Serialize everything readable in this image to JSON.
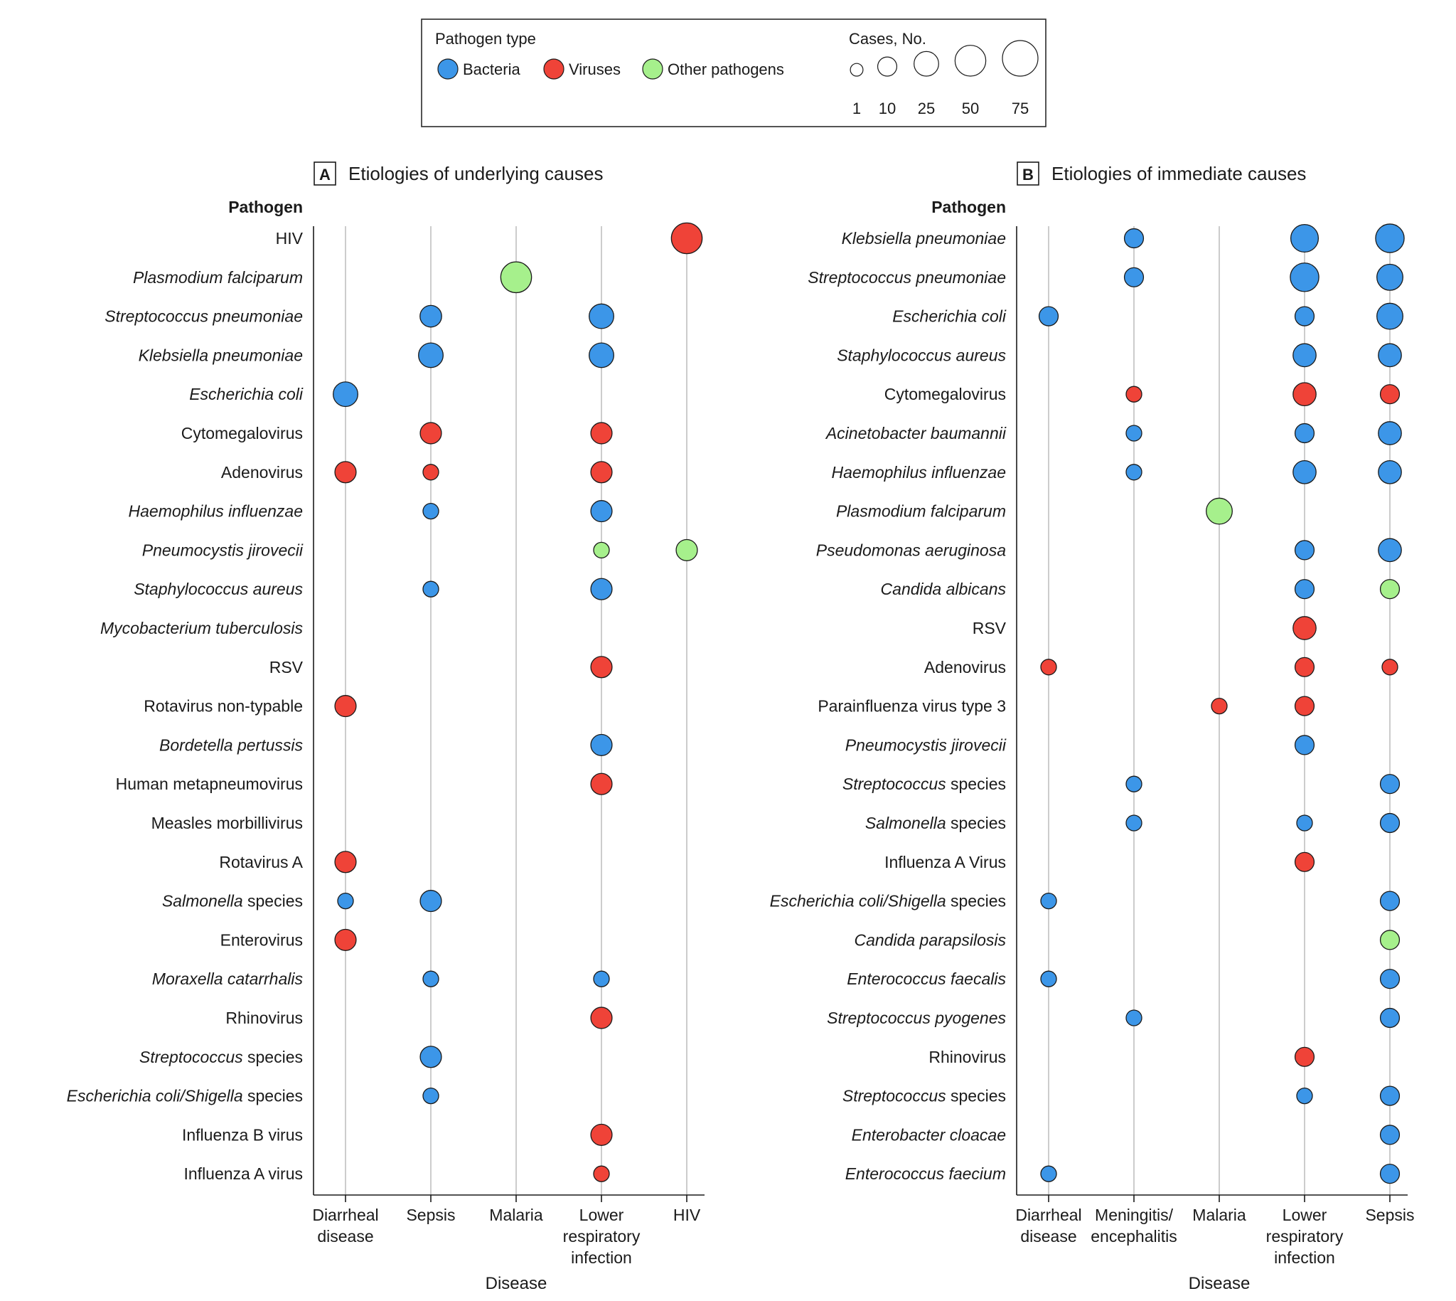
{
  "legend": {
    "type_title": "Pathogen type",
    "types": [
      {
        "key": "bacteria",
        "label": "Bacteria",
        "color": "#3c96e8"
      },
      {
        "key": "viruses",
        "label": "Viruses",
        "color": "#ef4338"
      },
      {
        "key": "other",
        "label": "Other pathogens",
        "color": "#a6f08c"
      }
    ],
    "size_title": "Cases, No.",
    "sizes": [
      {
        "label": "1",
        "value": 1
      },
      {
        "label": "10",
        "value": 10
      },
      {
        "label": "25",
        "value": 25
      },
      {
        "label": "50",
        "value": 50
      },
      {
        "label": "75",
        "value": 75
      }
    ]
  },
  "chart_data": [
    {
      "type": "scatter",
      "panel_letter": "A",
      "title": "Etiologies of underlying causes",
      "ylabel": "Pathogen",
      "xlabel": "Disease",
      "value_note": "bubble values are case counts estimated from bubble size against the legend",
      "categories": [
        "Diarrheal\ndisease",
        "Sepsis",
        "Malaria",
        "Lower\nrespiratory\ninfection",
        "HIV"
      ],
      "pathogens": [
        {
          "name": "HIV",
          "italic": false
        },
        {
          "name": "Plasmodium falciparum",
          "italic": true
        },
        {
          "name": "Streptococcus pneumoniae",
          "italic": true
        },
        {
          "name": "Klebsiella pneumoniae",
          "italic": true
        },
        {
          "name": "Escherichia coli",
          "italic": true
        },
        {
          "name": "Cytomegalovirus",
          "italic": false
        },
        {
          "name": "Adenovirus",
          "italic": false
        },
        {
          "name": "Haemophilus influenzae",
          "italic": true
        },
        {
          "name": "Pneumocystis jirovecii",
          "italic": true
        },
        {
          "name": "Staphylococcus aureus",
          "italic": true
        },
        {
          "name": "Mycobacterium tuberculosis",
          "italic": true
        },
        {
          "name": "RSV",
          "italic": false
        },
        {
          "name": "Rotavirus non-typable",
          "italic": false
        },
        {
          "name": "Bordetella pertussis",
          "italic": true
        },
        {
          "name": "Human metapneumovirus",
          "italic": false
        },
        {
          "name": "Measles morbillivirus",
          "italic": false
        },
        {
          "name": "Rotavirus A",
          "italic": false
        },
        {
          "name": "Salmonella species",
          "italic": true,
          "plain_suffix": " species"
        },
        {
          "name": "Enterovirus",
          "italic": false
        },
        {
          "name": "Moraxella catarrhalis",
          "italic": true
        },
        {
          "name": "Rhinovirus",
          "italic": false
        },
        {
          "name": "Streptococcus species",
          "italic": true,
          "plain_suffix": " species"
        },
        {
          "name": "Escherichia coli/Shigella  species",
          "italic": true,
          "plain_suffix": "  species"
        },
        {
          "name": "Influenza B virus",
          "italic": false
        },
        {
          "name": "Influenza A virus",
          "italic": false
        }
      ],
      "points": [
        {
          "row": 0,
          "col": 4,
          "type": "viruses",
          "cases": 50
        },
        {
          "row": 1,
          "col": 2,
          "type": "other",
          "cases": 50
        },
        {
          "row": 2,
          "col": 1,
          "type": "bacteria",
          "cases": 16
        },
        {
          "row": 2,
          "col": 3,
          "type": "bacteria",
          "cases": 25
        },
        {
          "row": 3,
          "col": 1,
          "type": "bacteria",
          "cases": 25
        },
        {
          "row": 3,
          "col": 3,
          "type": "bacteria",
          "cases": 25
        },
        {
          "row": 4,
          "col": 0,
          "type": "bacteria",
          "cases": 25
        },
        {
          "row": 5,
          "col": 1,
          "type": "viruses",
          "cases": 15
        },
        {
          "row": 5,
          "col": 3,
          "type": "viruses",
          "cases": 15
        },
        {
          "row": 6,
          "col": 0,
          "type": "viruses",
          "cases": 15
        },
        {
          "row": 6,
          "col": 1,
          "type": "viruses",
          "cases": 4
        },
        {
          "row": 6,
          "col": 3,
          "type": "viruses",
          "cases": 15
        },
        {
          "row": 7,
          "col": 1,
          "type": "bacteria",
          "cases": 4
        },
        {
          "row": 7,
          "col": 3,
          "type": "bacteria",
          "cases": 15
        },
        {
          "row": 8,
          "col": 3,
          "type": "other",
          "cases": 4
        },
        {
          "row": 8,
          "col": 4,
          "type": "other",
          "cases": 15
        },
        {
          "row": 9,
          "col": 1,
          "type": "bacteria",
          "cases": 4
        },
        {
          "row": 9,
          "col": 3,
          "type": "bacteria",
          "cases": 15
        },
        {
          "row": 11,
          "col": 3,
          "type": "viruses",
          "cases": 15
        },
        {
          "row": 12,
          "col": 0,
          "type": "viruses",
          "cases": 15
        },
        {
          "row": 13,
          "col": 3,
          "type": "bacteria",
          "cases": 15
        },
        {
          "row": 14,
          "col": 3,
          "type": "viruses",
          "cases": 15
        },
        {
          "row": 16,
          "col": 0,
          "type": "viruses",
          "cases": 15
        },
        {
          "row": 17,
          "col": 0,
          "type": "bacteria",
          "cases": 4
        },
        {
          "row": 17,
          "col": 1,
          "type": "bacteria",
          "cases": 15
        },
        {
          "row": 18,
          "col": 0,
          "type": "viruses",
          "cases": 15
        },
        {
          "row": 19,
          "col": 1,
          "type": "bacteria",
          "cases": 4
        },
        {
          "row": 19,
          "col": 3,
          "type": "bacteria",
          "cases": 4
        },
        {
          "row": 20,
          "col": 3,
          "type": "viruses",
          "cases": 15
        },
        {
          "row": 21,
          "col": 1,
          "type": "bacteria",
          "cases": 15
        },
        {
          "row": 22,
          "col": 1,
          "type": "bacteria",
          "cases": 4
        },
        {
          "row": 23,
          "col": 3,
          "type": "viruses",
          "cases": 15
        },
        {
          "row": 24,
          "col": 3,
          "type": "viruses",
          "cases": 4
        }
      ]
    },
    {
      "type": "scatter",
      "panel_letter": "B",
      "title": "Etiologies of immediate causes",
      "ylabel": "Pathogen",
      "xlabel": "Disease",
      "value_note": "bubble values are case counts estimated from bubble size against the legend",
      "categories": [
        "Diarrheal\ndisease",
        "Meningitis/\nencephalitis",
        "Malaria",
        "Lower\nrespiratory\ninfection",
        "Sepsis"
      ],
      "pathogens": [
        {
          "name": "Klebsiella pneumoniae",
          "italic": true
        },
        {
          "name": "Streptococcus pneumoniae",
          "italic": true
        },
        {
          "name": "Escherichia coli",
          "italic": true
        },
        {
          "name": "Staphylococcus aureus",
          "italic": true
        },
        {
          "name": "Cytomegalovirus",
          "italic": false
        },
        {
          "name": "Acinetobacter baumannii",
          "italic": true
        },
        {
          "name": "Haemophilus influenzae",
          "italic": true
        },
        {
          "name": "Plasmodium falciparum",
          "italic": true
        },
        {
          "name": "Pseudomonas aeruginosa",
          "italic": true
        },
        {
          "name": "Candida albicans",
          "italic": true
        },
        {
          "name": "RSV",
          "italic": false
        },
        {
          "name": "Adenovirus",
          "italic": false
        },
        {
          "name": "Parainfluenza virus type 3",
          "italic": false
        },
        {
          "name": "Pneumocystis jirovecii",
          "italic": true
        },
        {
          "name": "Streptococcus species",
          "italic": true,
          "plain_suffix": " species"
        },
        {
          "name": "Salmonella species",
          "italic": true,
          "plain_suffix": " species"
        },
        {
          "name": "Influenza A Virus",
          "italic": false
        },
        {
          "name": "Escherichia coli/Shigella species",
          "italic": true,
          "plain_suffix": " species"
        },
        {
          "name": "Candida parapsilosis",
          "italic": true
        },
        {
          "name": "Enterococcus faecalis",
          "italic": true
        },
        {
          "name": "Streptococcus pyogenes",
          "italic": true
        },
        {
          "name": "Rhinovirus",
          "italic": false
        },
        {
          "name": "Streptococcus species",
          "italic": true,
          "plain_suffix": " species"
        },
        {
          "name": "Enterobacter cloacae",
          "italic": true
        },
        {
          "name": "Enterococcus faecium",
          "italic": true
        }
      ],
      "points": [
        {
          "row": 0,
          "col": 1,
          "type": "bacteria",
          "cases": 10
        },
        {
          "row": 0,
          "col": 3,
          "type": "bacteria",
          "cases": 36
        },
        {
          "row": 0,
          "col": 4,
          "type": "bacteria",
          "cases": 40
        },
        {
          "row": 1,
          "col": 1,
          "type": "bacteria",
          "cases": 10
        },
        {
          "row": 1,
          "col": 3,
          "type": "bacteria",
          "cases": 40
        },
        {
          "row": 1,
          "col": 4,
          "type": "bacteria",
          "cases": 30
        },
        {
          "row": 2,
          "col": 0,
          "type": "bacteria",
          "cases": 10
        },
        {
          "row": 2,
          "col": 3,
          "type": "bacteria",
          "cases": 10
        },
        {
          "row": 2,
          "col": 4,
          "type": "bacteria",
          "cases": 30
        },
        {
          "row": 3,
          "col": 3,
          "type": "bacteria",
          "cases": 20
        },
        {
          "row": 3,
          "col": 4,
          "type": "bacteria",
          "cases": 20
        },
        {
          "row": 4,
          "col": 1,
          "type": "viruses",
          "cases": 4
        },
        {
          "row": 4,
          "col": 3,
          "type": "viruses",
          "cases": 20
        },
        {
          "row": 4,
          "col": 4,
          "type": "viruses",
          "cases": 10
        },
        {
          "row": 5,
          "col": 1,
          "type": "bacteria",
          "cases": 4
        },
        {
          "row": 5,
          "col": 3,
          "type": "bacteria",
          "cases": 10
        },
        {
          "row": 5,
          "col": 4,
          "type": "bacteria",
          "cases": 20
        },
        {
          "row": 6,
          "col": 1,
          "type": "bacteria",
          "cases": 4
        },
        {
          "row": 6,
          "col": 3,
          "type": "bacteria",
          "cases": 20
        },
        {
          "row": 6,
          "col": 4,
          "type": "bacteria",
          "cases": 20
        },
        {
          "row": 7,
          "col": 2,
          "type": "other",
          "cases": 30
        },
        {
          "row": 8,
          "col": 3,
          "type": "bacteria",
          "cases": 10
        },
        {
          "row": 8,
          "col": 4,
          "type": "bacteria",
          "cases": 20
        },
        {
          "row": 9,
          "col": 3,
          "type": "bacteria",
          "cases": 10
        },
        {
          "row": 9,
          "col": 4,
          "type": "other",
          "cases": 10
        },
        {
          "row": 10,
          "col": 3,
          "type": "viruses",
          "cases": 20
        },
        {
          "row": 11,
          "col": 0,
          "type": "viruses",
          "cases": 4
        },
        {
          "row": 11,
          "col": 3,
          "type": "viruses",
          "cases": 10
        },
        {
          "row": 11,
          "col": 4,
          "type": "viruses",
          "cases": 4
        },
        {
          "row": 12,
          "col": 2,
          "type": "viruses",
          "cases": 4
        },
        {
          "row": 12,
          "col": 3,
          "type": "viruses",
          "cases": 10
        },
        {
          "row": 13,
          "col": 3,
          "type": "bacteria",
          "cases": 10
        },
        {
          "row": 14,
          "col": 1,
          "type": "bacteria",
          "cases": 4
        },
        {
          "row": 14,
          "col": 4,
          "type": "bacteria",
          "cases": 10
        },
        {
          "row": 15,
          "col": 1,
          "type": "bacteria",
          "cases": 4
        },
        {
          "row": 15,
          "col": 3,
          "type": "bacteria",
          "cases": 4
        },
        {
          "row": 15,
          "col": 4,
          "type": "bacteria",
          "cases": 10
        },
        {
          "row": 16,
          "col": 3,
          "type": "viruses",
          "cases": 10
        },
        {
          "row": 17,
          "col": 0,
          "type": "bacteria",
          "cases": 4
        },
        {
          "row": 17,
          "col": 4,
          "type": "bacteria",
          "cases": 10
        },
        {
          "row": 18,
          "col": 4,
          "type": "other",
          "cases": 10
        },
        {
          "row": 19,
          "col": 0,
          "type": "bacteria",
          "cases": 4
        },
        {
          "row": 19,
          "col": 4,
          "type": "bacteria",
          "cases": 10
        },
        {
          "row": 20,
          "col": 1,
          "type": "bacteria",
          "cases": 4
        },
        {
          "row": 20,
          "col": 4,
          "type": "bacteria",
          "cases": 10
        },
        {
          "row": 21,
          "col": 3,
          "type": "viruses",
          "cases": 10
        },
        {
          "row": 22,
          "col": 3,
          "type": "bacteria",
          "cases": 4
        },
        {
          "row": 22,
          "col": 4,
          "type": "bacteria",
          "cases": 10
        },
        {
          "row": 23,
          "col": 4,
          "type": "bacteria",
          "cases": 10
        },
        {
          "row": 24,
          "col": 0,
          "type": "bacteria",
          "cases": 4
        },
        {
          "row": 24,
          "col": 4,
          "type": "bacteria",
          "cases": 10
        }
      ]
    }
  ]
}
